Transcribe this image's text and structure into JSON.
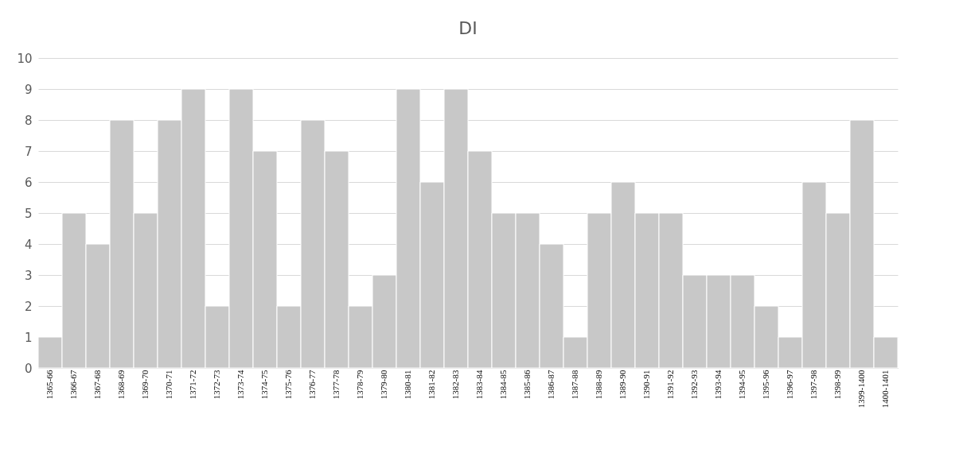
{
  "chart_data": {
    "type": "bar",
    "title": "DI",
    "categories": [
      "1365-66",
      "1366-67",
      "1367-68",
      "1368-69",
      "1369-70",
      "1370-71",
      "1371-72",
      "1372-73",
      "1373-74",
      "1374-75",
      "1375-76",
      "1376-77",
      "1377-78",
      "1378-79",
      "1379-80",
      "1380-81",
      "1381-82",
      "1382-83",
      "1383-84",
      "1384-85",
      "1385-86",
      "1386-87",
      "1387-88",
      "1388-89",
      "1389-90",
      "1390-91",
      "1391-92",
      "1392-93",
      "1393-94",
      "1394-95",
      "1395-96",
      "1396-97",
      "1397-98",
      "1398-99",
      "1399-1400",
      "1400-1401"
    ],
    "values": [
      1,
      5,
      4,
      8,
      5,
      8,
      9,
      2,
      9,
      7,
      2,
      8,
      7,
      2,
      3,
      9,
      6,
      9,
      7,
      5,
      5,
      4,
      1,
      5,
      6,
      5,
      5,
      3,
      3,
      3,
      2,
      1,
      6,
      5,
      8,
      1
    ],
    "color": "#c8c8c8",
    "ylim": [
      0,
      10
    ],
    "yticks": [
      0,
      1,
      2,
      3,
      4,
      5,
      6,
      7,
      8,
      9,
      10
    ],
    "grid": "y"
  }
}
